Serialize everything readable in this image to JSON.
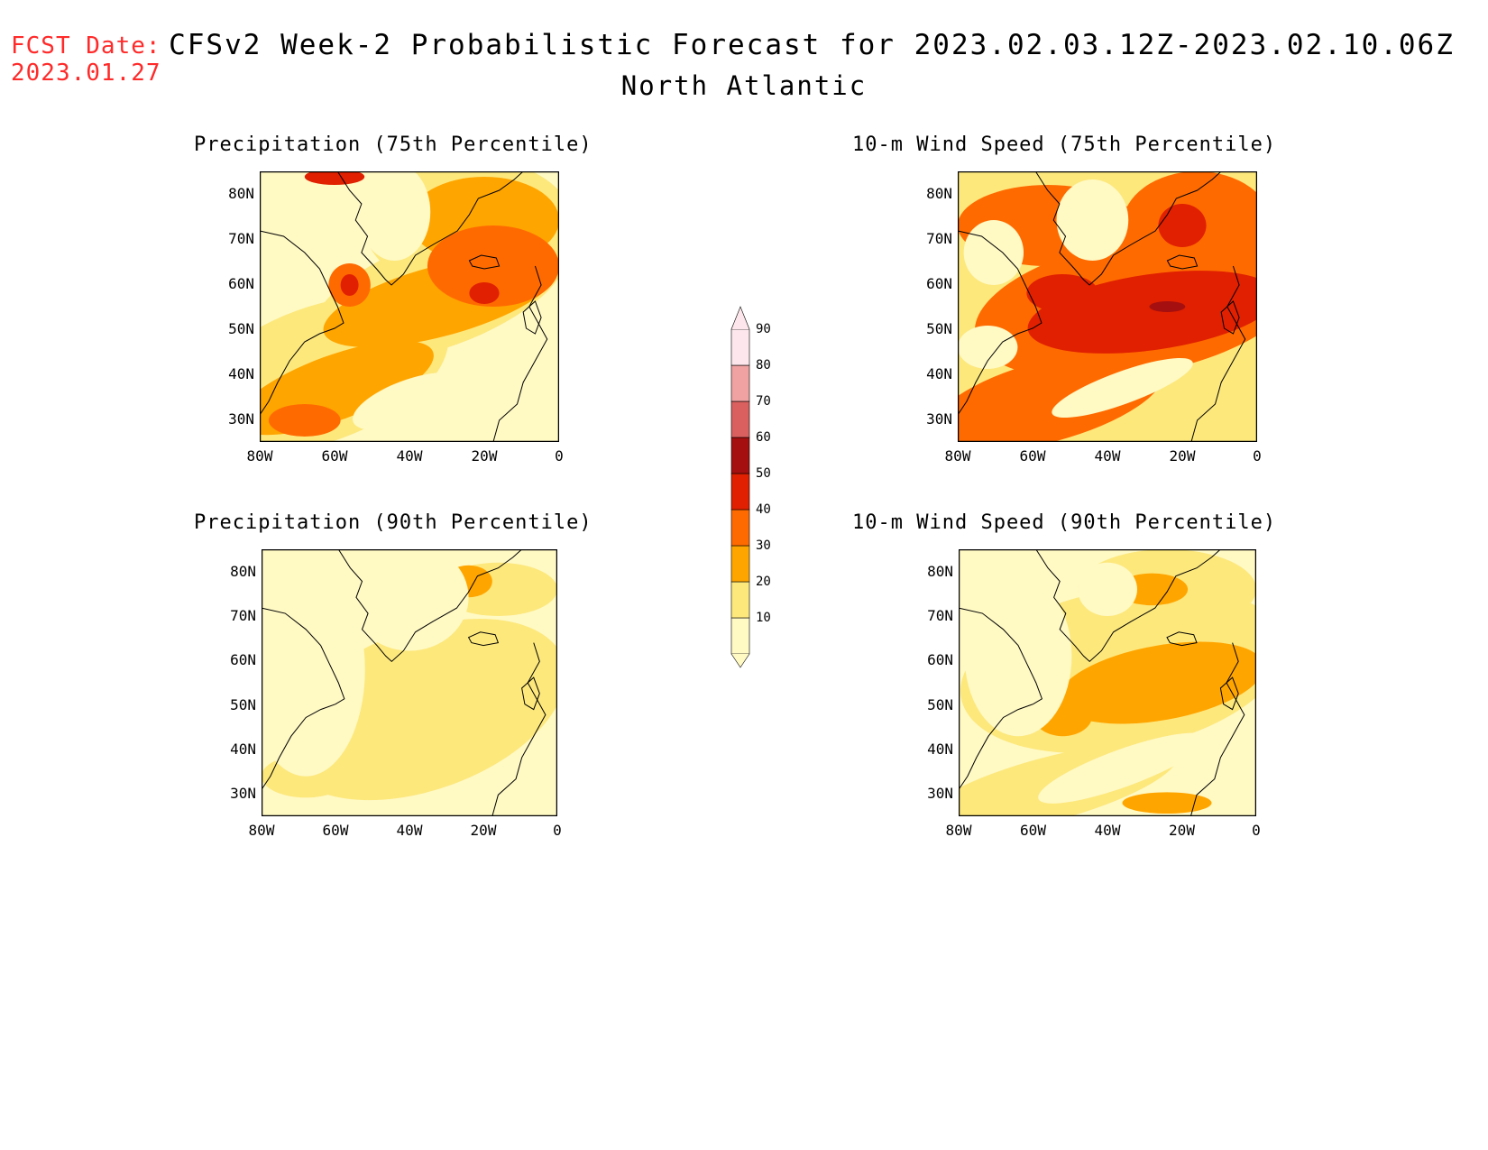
{
  "header": {
    "fcst_label": "FCST Date:",
    "fcst_date": "2023.01.27",
    "title": "CFSv2 Week-2 Probabilistic Forecast for 2023.02.03.12Z-2023.02.10.06Z",
    "subtitle": "North Atlantic"
  },
  "panels": [
    {
      "title": "Precipitation (75th Percentile)"
    },
    {
      "title": "10-m Wind Speed (75th Percentile)"
    },
    {
      "title": "Precipitation (90th Percentile)"
    },
    {
      "title": "10-m Wind Speed (90th Percentile)"
    }
  ],
  "axes": {
    "lat_labels": [
      "80N",
      "70N",
      "60N",
      "50N",
      "40N",
      "30N"
    ],
    "lon_labels": [
      "80W",
      "60W",
      "40W",
      "20W",
      "0"
    ]
  },
  "colorbar": {
    "labels": [
      "90",
      "80",
      "70",
      "60",
      "50",
      "40",
      "30",
      "20",
      "10"
    ],
    "colors": [
      "#fff9c4",
      "#fde87c",
      "#ffa500",
      "#ff6a00",
      "#e02000",
      "#a50f0f",
      "#d9605f",
      "#f0a2a2",
      "#fde7ec"
    ]
  }
}
